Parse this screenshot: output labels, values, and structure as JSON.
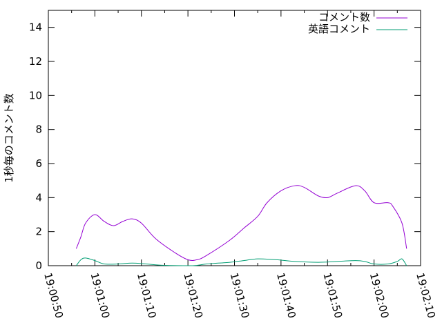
{
  "chart_data": {
    "type": "line",
    "title": "",
    "xlabel": "",
    "ylabel": "1秒毎のコメント数",
    "xlim": [
      "19:00:50",
      "19:02:10"
    ],
    "ylim": [
      0,
      15
    ],
    "x_ticks": [
      "19:00:50",
      "19:01:00",
      "19:01:10",
      "19:01:20",
      "19:01:30",
      "19:01:40",
      "19:01:50",
      "19:02:00",
      "19:02:10"
    ],
    "y_ticks": [
      "0",
      "2",
      "4",
      "6",
      "8",
      "10",
      "12",
      "14"
    ],
    "grid": false,
    "legend": "top-right",
    "series": [
      {
        "name": "コメント数",
        "color": "#9400d3",
        "x": [
          "19:00:56",
          "19:00:57",
          "19:00:58",
          "19:01:00",
          "19:01:02",
          "19:01:04",
          "19:01:06",
          "19:01:08",
          "19:01:10",
          "19:01:13",
          "19:01:17",
          "19:01:20",
          "19:01:22",
          "19:01:24",
          "19:01:29",
          "19:01:32",
          "19:01:35",
          "19:01:37",
          "19:01:40",
          "19:01:43",
          "19:01:45",
          "19:01:48",
          "19:01:50",
          "19:01:52",
          "19:01:56",
          "19:01:58",
          "19:02:00",
          "19:02:03",
          "19:02:04",
          "19:02:06",
          "19:02:07"
        ],
        "y": [
          1.0,
          1.7,
          2.5,
          3.0,
          2.6,
          2.35,
          2.6,
          2.75,
          2.5,
          1.6,
          0.8,
          0.35,
          0.35,
          0.6,
          1.5,
          2.2,
          2.9,
          3.7,
          4.4,
          4.7,
          4.6,
          4.1,
          4.0,
          4.25,
          4.7,
          4.4,
          3.7,
          3.7,
          3.5,
          2.5,
          1.0
        ]
      },
      {
        "name": "英語コメント",
        "color": "#009e73",
        "x": [
          "19:00:56",
          "19:00:57",
          "19:00:58",
          "19:01:00",
          "19:01:02",
          "19:01:05",
          "19:01:08",
          "19:01:11",
          "19:01:15",
          "19:01:21",
          "19:01:24",
          "19:01:29",
          "19:01:32",
          "19:01:35",
          "19:01:39",
          "19:01:43",
          "19:01:48",
          "19:01:52",
          "19:01:56",
          "19:01:58",
          "19:02:00",
          "19:02:03",
          "19:02:05",
          "19:02:06",
          "19:02:07"
        ],
        "y": [
          0,
          0.35,
          0.45,
          0.3,
          0.1,
          0.1,
          0.15,
          0.1,
          0.02,
          0,
          0.1,
          0.2,
          0.3,
          0.4,
          0.35,
          0.25,
          0.2,
          0.25,
          0.3,
          0.25,
          0.1,
          0.1,
          0.25,
          0.4,
          0
        ]
      }
    ]
  }
}
